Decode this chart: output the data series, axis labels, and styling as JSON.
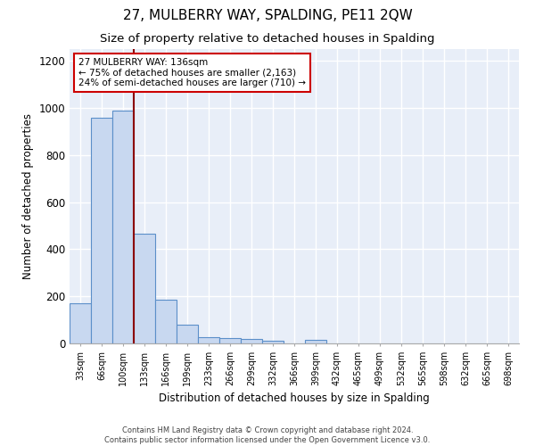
{
  "title": "27, MULBERRY WAY, SPALDING, PE11 2QW",
  "subtitle": "Size of property relative to detached houses in Spalding",
  "xlabel": "Distribution of detached houses by size in Spalding",
  "ylabel": "Number of detached properties",
  "categories": [
    "33sqm",
    "66sqm",
    "100sqm",
    "133sqm",
    "166sqm",
    "199sqm",
    "233sqm",
    "266sqm",
    "299sqm",
    "332sqm",
    "366sqm",
    "399sqm",
    "432sqm",
    "465sqm",
    "499sqm",
    "532sqm",
    "565sqm",
    "598sqm",
    "632sqm",
    "665sqm",
    "698sqm"
  ],
  "values": [
    170,
    960,
    990,
    465,
    185,
    80,
    28,
    22,
    18,
    12,
    0,
    14,
    0,
    0,
    0,
    0,
    0,
    0,
    0,
    0,
    0
  ],
  "bar_color": "#c8d8f0",
  "bar_edge_color": "#5b8fc9",
  "property_line_x": 2.5,
  "property_line_color": "#8B0000",
  "annotation_text": "27 MULBERRY WAY: 136sqm\n← 75% of detached houses are smaller (2,163)\n24% of semi-detached houses are larger (710) →",
  "annotation_box_color": "white",
  "annotation_box_edge": "#cc0000",
  "ylim": [
    0,
    1250
  ],
  "yticks": [
    0,
    200,
    400,
    600,
    800,
    1000,
    1200
  ],
  "background_color": "#e8eef8",
  "grid_color": "white",
  "footer_line1": "Contains HM Land Registry data © Crown copyright and database right 2024.",
  "footer_line2": "Contains public sector information licensed under the Open Government Licence v3.0.",
  "title_fontsize": 11,
  "subtitle_fontsize": 9.5
}
